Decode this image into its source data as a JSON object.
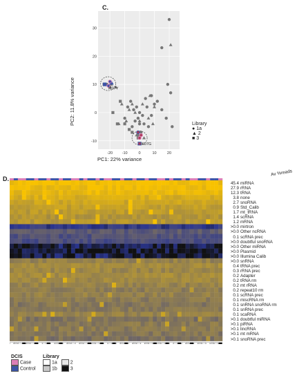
{
  "panel_c": {
    "label": "C.",
    "chart_data": {
      "type": "scatter",
      "title": "",
      "xlabel": "PC1: 22% variance",
      "ylabel": "PC2: 11.8% variance",
      "xlim": [
        -28,
        27
      ],
      "ylim": [
        -13,
        36
      ],
      "xticks": [
        -20,
        -10,
        0,
        10,
        20
      ],
      "yticks": [
        -10,
        0,
        10,
        20,
        30
      ],
      "legend": {
        "title": "Library",
        "position": "right",
        "entries": [
          "1a",
          "2",
          "3"
        ]
      },
      "annotations": [
        {
          "text": "I607Y",
          "x": -21,
          "y": 8.2
        },
        {
          "text": "I607G",
          "x": 1,
          "y": -11.5
        }
      ],
      "series": [
        {
          "name": "1a",
          "shape": "circle",
          "points": [
            [
              20,
              33
            ],
            [
              15,
              23
            ],
            [
              -8,
              2
            ],
            [
              -4,
              1
            ],
            [
              -2,
              2
            ],
            [
              0,
              0
            ],
            [
              2,
              -1
            ],
            [
              5,
              2
            ],
            [
              8,
              -1
            ],
            [
              10,
              3
            ],
            [
              15,
              1
            ],
            [
              18,
              -2
            ],
            [
              22,
              -5
            ],
            [
              -3,
              -3
            ],
            [
              -1,
              -2
            ],
            [
              4,
              5
            ],
            [
              8,
              6
            ],
            [
              12,
              4
            ],
            [
              -6,
              4
            ],
            [
              -10,
              -2
            ],
            [
              1,
              -7
            ],
            [
              -1,
              -8
            ],
            [
              -22,
              10
            ],
            [
              -20,
              9
            ],
            [
              19,
              10
            ],
            [
              21,
              7
            ],
            [
              -5,
              -5
            ],
            [
              3,
              -4
            ],
            [
              6,
              -5
            ],
            [
              0,
              -4
            ]
          ]
        },
        {
          "name": "2",
          "shape": "triangle",
          "points": [
            [
              21,
              24
            ],
            [
              -12,
              3
            ],
            [
              -9,
              -3
            ],
            [
              -5,
              3
            ],
            [
              -3,
              0
            ],
            [
              0,
              -3
            ],
            [
              2,
              3
            ],
            [
              6,
              -2
            ],
            [
              10,
              2
            ],
            [
              -19,
              10
            ],
            [
              -2,
              -8
            ],
            [
              3,
              -9
            ],
            [
              -7,
              1
            ],
            [
              9,
              -4
            ],
            [
              -14,
              -4
            ],
            [
              -16,
              9
            ],
            [
              7,
              6
            ]
          ]
        },
        {
          "name": "3",
          "shape": "square",
          "points": [
            [
              -23,
              10
            ],
            [
              -18,
              0
            ],
            [
              -15,
              -4
            ],
            [
              -10,
              -4
            ],
            [
              -7,
              -6
            ],
            [
              -5,
              -7
            ],
            [
              -1,
              -9
            ],
            [
              0,
              -11
            ],
            [
              -13,
              4
            ],
            [
              -24,
              10
            ]
          ]
        }
      ],
      "highlighted": {
        "I607Y": [
          [
            -23.5,
            10,
            "square"
          ],
          [
            -21,
            9.5,
            "circle"
          ],
          [
            -19,
            10.5,
            "triangle"
          ],
          [
            -20,
            11,
            "circle"
          ]
        ],
        "I607G": [
          [
            -1,
            -7,
            "circle"
          ],
          [
            0,
            -9,
            "circle"
          ],
          [
            0,
            -11,
            "square"
          ],
          [
            1,
            -8,
            "circle"
          ]
        ]
      },
      "colors": {
        "marker": "#777777",
        "case": "#dd7fb6",
        "control": "#3d55a6"
      }
    }
  },
  "panel_d": {
    "label": "D.",
    "header": "Av %reads",
    "chart_data": {
      "type": "heatmap",
      "columns": 52,
      "rows": [
        {
          "label": "miRNA",
          "pct": "45.4"
        },
        {
          "label": "rRNA",
          "pct": "27.9"
        },
        {
          "label": "tRNA",
          "pct": "12.3"
        },
        {
          "label": "none",
          "pct": "3.8"
        },
        {
          "label": "snoRNA",
          "pct": "2.7"
        },
        {
          "label": "Std_Calib",
          "pct": "0.9"
        },
        {
          "label": "mt_tRNA",
          "pct": "1.7"
        },
        {
          "label": "scRNA",
          "pct": "1.4"
        },
        {
          "label": "mRNA",
          "pct": "1.2"
        },
        {
          "label": "mirtron",
          "pct": ">0.0"
        },
        {
          "label": "Other ncRNA",
          "pct": ">0.0"
        },
        {
          "label": "scRNA prec",
          "pct": "0.1"
        },
        {
          "label": "doubtful snoRNA",
          "pct": ">0.0"
        },
        {
          "label": "Other miRNA",
          "pct": ">0.0"
        },
        {
          "label": "Plasmid",
          "pct": ">0.0"
        },
        {
          "label": "Illumina Calib",
          "pct": ">0.0"
        },
        {
          "label": "snRNA",
          "pct": ">0.0"
        },
        {
          "label": "tRNA prec",
          "pct": "0.4"
        },
        {
          "label": "rRNA prec",
          "pct": "0.3"
        },
        {
          "label": "Adapter",
          "pct": "0.2"
        },
        {
          "label": "tRNA rm",
          "pct": "0.2"
        },
        {
          "label": "mt rRNA",
          "pct": "0.2"
        },
        {
          "label": "repeat10 rm",
          "pct": "0.2"
        },
        {
          "label": "scRNA prec",
          "pct": "0.1"
        },
        {
          "label": "miscRNA rm",
          "pct": "0.1"
        },
        {
          "label": "snRNA snoRNA rm",
          "pct": "0.1"
        },
        {
          "label": "snRNA prec",
          "pct": "0.1"
        },
        {
          "label": "scaRNA",
          "pct": "0.1"
        },
        {
          "label": "doubtful miRNA",
          "pct": ">0.1"
        },
        {
          "label": "piRNA",
          "pct": ">0.1"
        },
        {
          "label": "lincRNA",
          "pct": ">0.1"
        },
        {
          "label": "mt mRNA",
          "pct": ">0.1"
        },
        {
          "label": "snoRNA prec",
          "pct": ">0.1"
        }
      ],
      "row_levels": [
        0.98,
        0.95,
        0.92,
        0.85,
        0.8,
        0.75,
        0.72,
        0.68,
        0.7,
        0.15,
        0.32,
        0.28,
        0.25,
        0.05,
        0.03,
        0.05,
        0.55,
        0.62,
        0.58,
        0.62,
        0.6,
        0.56,
        0.52,
        0.55,
        0.5,
        0.48,
        0.5,
        0.55,
        0.45,
        0.5,
        0.5,
        0.48,
        0.45
      ],
      "colors": {
        "high": "#f8c200",
        "mid": "#8a7a55",
        "low": "#2a3590",
        "min": "#111111"
      },
      "dcis_annotation": {
        "case_color": "#dd7fb6",
        "control_color": "#3d55a6"
      },
      "library_annotation": {
        "1a": "#ffffff",
        "1b": "#c8c8c8",
        "2": "#e8e8e8",
        "3": "#111111"
      }
    }
  },
  "bottom_legend": {
    "dcis_title": "DCIS",
    "case": "Case",
    "control": "Control",
    "library_title": "Library",
    "lib_1a": "1a",
    "lib_1b": "1b",
    "lib_2": "2",
    "lib_3": "3"
  }
}
